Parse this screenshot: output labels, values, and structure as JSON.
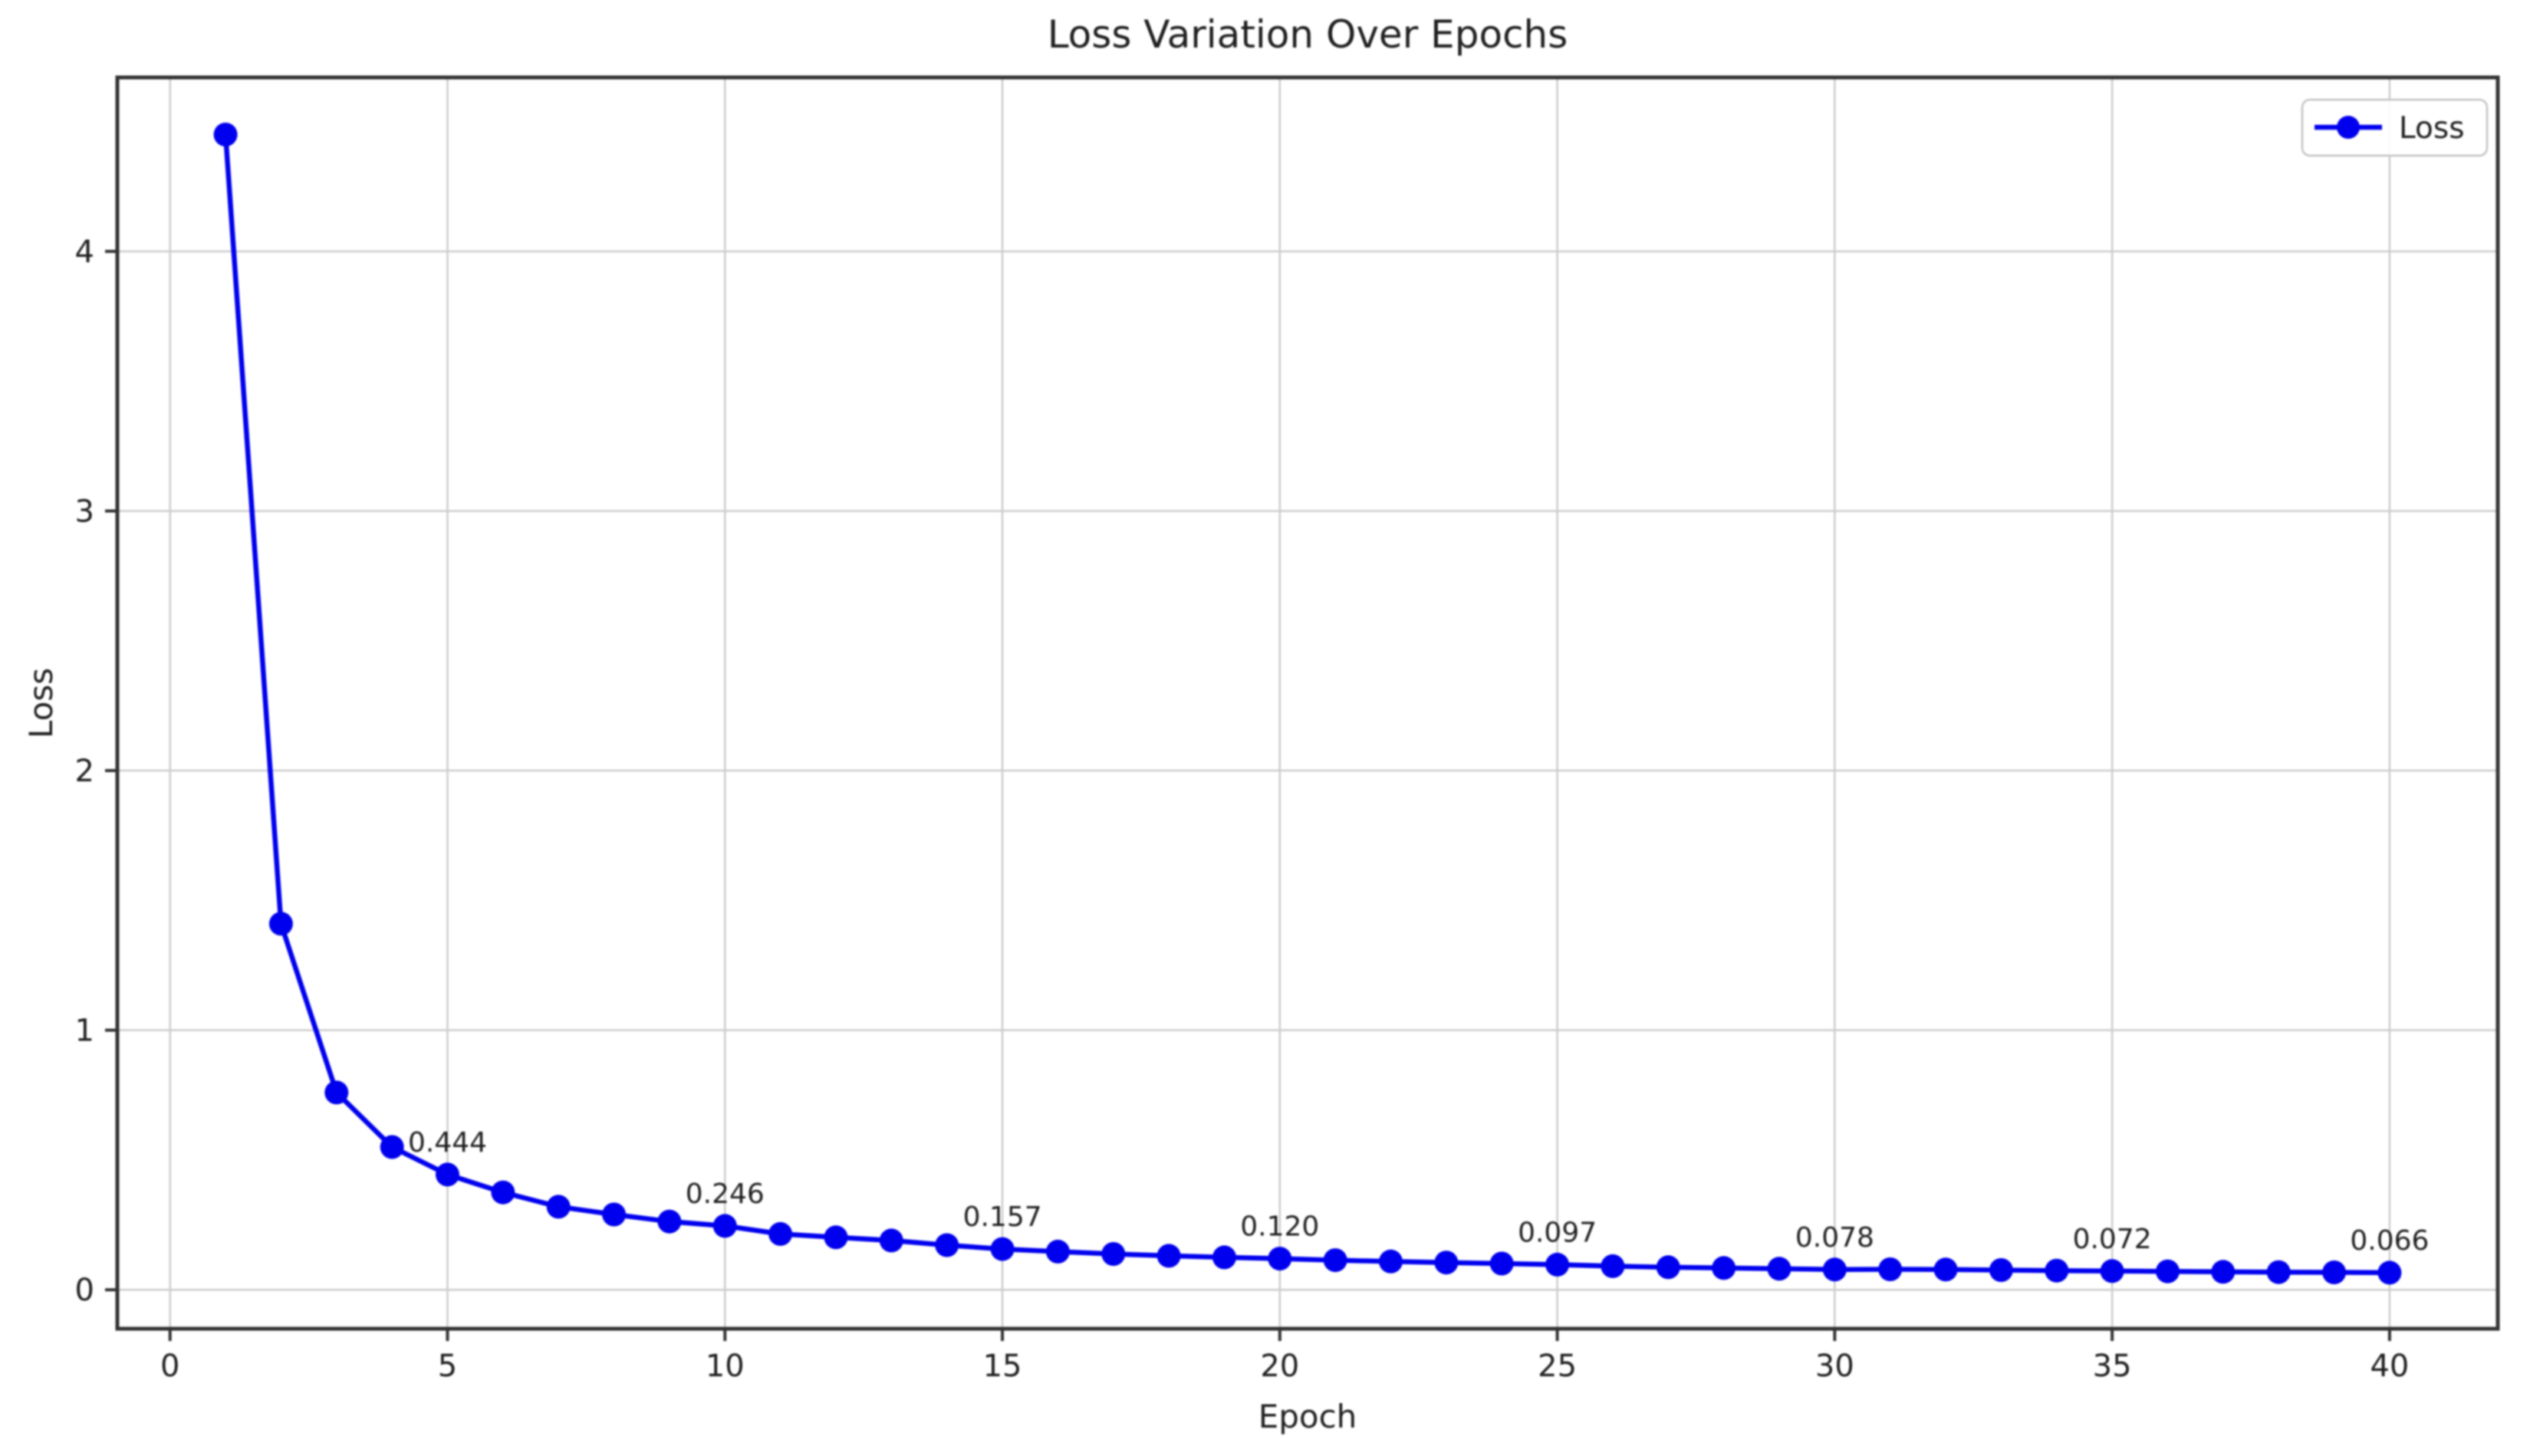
{
  "chart_data": {
    "type": "line",
    "title": "Loss Variation Over Epochs",
    "xlabel": "Epoch",
    "ylabel": "Loss",
    "grid": true,
    "legend": {
      "position": "upper right",
      "entries": [
        "Loss"
      ]
    },
    "xlim": [
      -0.95,
      41.95
    ],
    "ylim": [
      -0.15,
      4.67
    ],
    "x_ticks": [
      0,
      5,
      10,
      15,
      20,
      25,
      30,
      35,
      40
    ],
    "y_ticks": [
      0,
      1,
      2,
      3,
      4
    ],
    "series": [
      {
        "name": "Loss",
        "color": "#0000ee",
        "marker": "circle",
        "x": [
          1,
          2,
          3,
          4,
          5,
          6,
          7,
          8,
          9,
          10,
          11,
          12,
          13,
          14,
          15,
          16,
          17,
          18,
          19,
          20,
          21,
          22,
          23,
          24,
          25,
          26,
          27,
          28,
          29,
          30,
          31,
          32,
          33,
          34,
          35,
          36,
          37,
          38,
          39,
          40
        ],
        "values": [
          4.45,
          1.41,
          0.76,
          0.55,
          0.444,
          0.375,
          0.32,
          0.29,
          0.263,
          0.246,
          0.215,
          0.202,
          0.19,
          0.172,
          0.157,
          0.147,
          0.138,
          0.131,
          0.125,
          0.12,
          0.114,
          0.109,
          0.105,
          0.101,
          0.097,
          0.091,
          0.087,
          0.084,
          0.081,
          0.078,
          0.079,
          0.078,
          0.076,
          0.074,
          0.072,
          0.071,
          0.069,
          0.068,
          0.067,
          0.066
        ]
      }
    ],
    "annotations": [
      {
        "epoch": 5,
        "label": "0.444"
      },
      {
        "epoch": 10,
        "label": "0.246"
      },
      {
        "epoch": 15,
        "label": "0.157"
      },
      {
        "epoch": 20,
        "label": "0.120"
      },
      {
        "epoch": 25,
        "label": "0.097"
      },
      {
        "epoch": 30,
        "label": "0.078"
      },
      {
        "epoch": 35,
        "label": "0.072"
      },
      {
        "epoch": 40,
        "label": "0.066"
      }
    ],
    "colors": {
      "line": "#0000ee",
      "grid": "#cccccc",
      "spine": "#333333",
      "tick": "#333333",
      "text": "#1f1f1f",
      "legend_border": "#c4c4c4",
      "background": "#ffffff"
    }
  }
}
